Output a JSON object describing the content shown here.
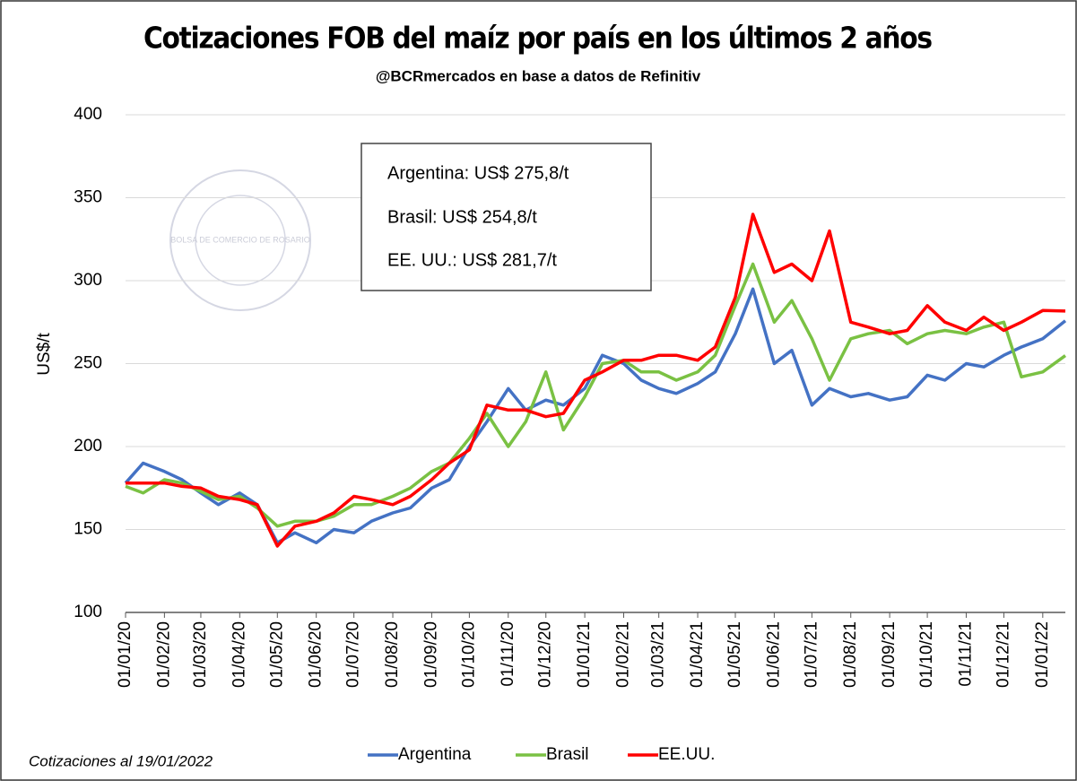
{
  "chart_data": {
    "type": "line",
    "title": "Cotizaciones FOB del maíz por país en los últimos 2 años",
    "subtitle": "@BCRmercados  en base a datos de Refinitiv",
    "y_label": "US$/t",
    "footnote": "Cotizaciones al 19/01/2022",
    "watermark": "BOLSA DE COMERCIO DE ROSARIO",
    "annotations": [
      "Argentina: US$ 275,8/t",
      "Brasil: US$ 254,8/t",
      "EE. UU.: US$ 281,7/t"
    ],
    "x": [
      "2020-01-01",
      "2020-01-15",
      "2020-02-01",
      "2020-02-15",
      "2020-03-01",
      "2020-03-15",
      "2020-04-01",
      "2020-04-15",
      "2020-05-01",
      "2020-05-15",
      "2020-06-01",
      "2020-06-15",
      "2020-07-01",
      "2020-07-15",
      "2020-08-01",
      "2020-08-15",
      "2020-09-01",
      "2020-09-15",
      "2020-10-01",
      "2020-10-15",
      "2020-11-01",
      "2020-11-15",
      "2020-12-01",
      "2020-12-15",
      "2021-01-01",
      "2021-01-15",
      "2021-02-01",
      "2021-02-15",
      "2021-03-01",
      "2021-03-15",
      "2021-04-01",
      "2021-04-15",
      "2021-05-01",
      "2021-05-15",
      "2021-06-01",
      "2021-06-15",
      "2021-07-01",
      "2021-07-15",
      "2021-08-01",
      "2021-08-15",
      "2021-09-01",
      "2021-09-15",
      "2021-10-01",
      "2021-10-15",
      "2021-11-01",
      "2021-11-15",
      "2021-12-01",
      "2021-12-15",
      "2022-01-01",
      "2022-01-19"
    ],
    "series": [
      {
        "name": "Argentina",
        "color": "#4472c4",
        "values": [
          178,
          190,
          185,
          180,
          172,
          165,
          172,
          165,
          142,
          148,
          142,
          150,
          148,
          155,
          160,
          163,
          175,
          180,
          200,
          215,
          235,
          222,
          228,
          225,
          235,
          255,
          250,
          240,
          235,
          232,
          238,
          245,
          268,
          295,
          250,
          258,
          225,
          235,
          230,
          232,
          228,
          230,
          243,
          240,
          250,
          248,
          255,
          260,
          265,
          275.8
        ]
      },
      {
        "name": "Brasil",
        "color": "#7ac143",
        "values": [
          176,
          172,
          180,
          178,
          173,
          168,
          170,
          163,
          152,
          155,
          155,
          158,
          165,
          165,
          170,
          175,
          185,
          190,
          205,
          220,
          200,
          215,
          245,
          210,
          230,
          250,
          252,
          245,
          245,
          240,
          245,
          255,
          285,
          310,
          275,
          288,
          265,
          240,
          265,
          268,
          270,
          262,
          268,
          270,
          268,
          272,
          275,
          242,
          245,
          254.8
        ]
      },
      {
        "name": "EE.UU.",
        "color": "#ff0000",
        "values": [
          178,
          178,
          178,
          176,
          175,
          170,
          168,
          165,
          140,
          152,
          155,
          160,
          170,
          168,
          165,
          170,
          180,
          190,
          198,
          225,
          222,
          222,
          218,
          220,
          240,
          245,
          252,
          252,
          255,
          255,
          252,
          260,
          290,
          340,
          305,
          310,
          300,
          330,
          275,
          272,
          268,
          270,
          285,
          275,
          270,
          278,
          270,
          275,
          282,
          281.7
        ]
      }
    ],
    "xlim": [
      "2020-01-01",
      "2022-01-19"
    ],
    "xticks": [
      {
        "value": "2020-01-01",
        "label": "01/01/20"
      },
      {
        "value": "2020-02-01",
        "label": "01/02/20"
      },
      {
        "value": "2020-03-01",
        "label": "01/03/20"
      },
      {
        "value": "2020-04-01",
        "label": "01/04/20"
      },
      {
        "value": "2020-05-01",
        "label": "01/05/20"
      },
      {
        "value": "2020-06-01",
        "label": "01/06/20"
      },
      {
        "value": "2020-07-01",
        "label": "01/07/20"
      },
      {
        "value": "2020-08-01",
        "label": "01/08/20"
      },
      {
        "value": "2020-09-01",
        "label": "01/09/20"
      },
      {
        "value": "2020-10-01",
        "label": "01/10/20"
      },
      {
        "value": "2020-11-01",
        "label": "01/11/20"
      },
      {
        "value": "2020-12-01",
        "label": "01/12/20"
      },
      {
        "value": "2021-01-01",
        "label": "01/01/21"
      },
      {
        "value": "2021-02-01",
        "label": "01/02/21"
      },
      {
        "value": "2021-03-01",
        "label": "01/03/21"
      },
      {
        "value": "2021-04-01",
        "label": "01/04/21"
      },
      {
        "value": "2021-05-01",
        "label": "01/05/21"
      },
      {
        "value": "2021-06-01",
        "label": "01/06/21"
      },
      {
        "value": "2021-07-01",
        "label": "01/07/21"
      },
      {
        "value": "2021-08-01",
        "label": "01/08/21"
      },
      {
        "value": "2021-09-01",
        "label": "01/09/21"
      },
      {
        "value": "2021-10-01",
        "label": "01/10/21"
      },
      {
        "value": "2021-11-01",
        "label": "01/11/21"
      },
      {
        "value": "2021-12-01",
        "label": "01/12/21"
      },
      {
        "value": "2022-01-01",
        "label": "01/01/22"
      }
    ],
    "ylim": [
      100,
      400
    ],
    "yticks": [
      100,
      150,
      200,
      250,
      300,
      350,
      400
    ],
    "grid": true,
    "legend": "bottom"
  }
}
